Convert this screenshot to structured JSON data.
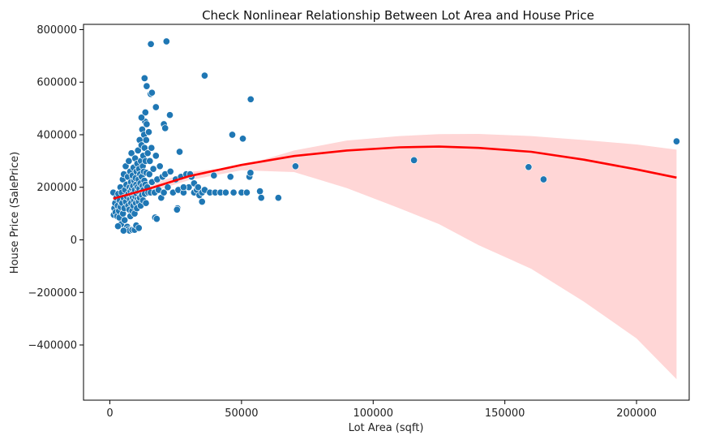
{
  "chart_data": {
    "type": "scatter",
    "title": "Check Nonlinear Relationship Between Lot Area and House Price",
    "xlabel": "Lot Area (sqft)",
    "ylabel": "House Price (SalePrice)",
    "xlim": [
      -10000,
      220000
    ],
    "ylim": [
      -610000,
      820000
    ],
    "xticks": [
      0,
      50000,
      100000,
      150000,
      200000
    ],
    "yticks": [
      -400000,
      -200000,
      0,
      200000,
      400000,
      600000,
      800000
    ],
    "xtick_labels": [
      "0",
      "50000",
      "100000",
      "150000",
      "200000"
    ],
    "ytick_labels": [
      "−400000",
      "−200000",
      "0",
      "200000",
      "400000",
      "600000",
      "800000"
    ],
    "grid": false,
    "colors": {
      "points": "#1f77b4",
      "point_edge": "#ffffff",
      "fit_line": "#ff0000",
      "ci_band": "#ffd6d6"
    },
    "series": [
      {
        "kind": "scatter",
        "points": [
          [
            1300,
            180000
          ],
          [
            1500,
            95000
          ],
          [
            1700,
            120000
          ],
          [
            2000,
            140000
          ],
          [
            2200,
            105000
          ],
          [
            2500,
            160000
          ],
          [
            2800,
            90000
          ],
          [
            3000,
            130000
          ],
          [
            3200,
            175000
          ],
          [
            3500,
            110000
          ],
          [
            3600,
            85000
          ],
          [
            3800,
            150000
          ],
          [
            4000,
            200000
          ],
          [
            4100,
            125000
          ],
          [
            4300,
            60000
          ],
          [
            4500,
            180000
          ],
          [
            4700,
            140000
          ],
          [
            4900,
            230000
          ],
          [
            5000,
            100000
          ],
          [
            5200,
            160000
          ],
          [
            5300,
            250000
          ],
          [
            5500,
            120000
          ],
          [
            5600,
            75000
          ],
          [
            5800,
            190000
          ],
          [
            6000,
            280000
          ],
          [
            6100,
            145000
          ],
          [
            6300,
            210000
          ],
          [
            6500,
            165000
          ],
          [
            6600,
            50000
          ],
          [
            6800,
            240000
          ],
          [
            7000,
            130000
          ],
          [
            7100,
            175000
          ],
          [
            7200,
            300000
          ],
          [
            7400,
            115000
          ],
          [
            7500,
            200000
          ],
          [
            7600,
            155000
          ],
          [
            7700,
            260000
          ],
          [
            7800,
            90000
          ],
          [
            7900,
            185000
          ],
          [
            8000,
            220000
          ],
          [
            8100,
            140000
          ],
          [
            8200,
            330000
          ],
          [
            8300,
            170000
          ],
          [
            8400,
            195000
          ],
          [
            8500,
            110000
          ],
          [
            8600,
            245000
          ],
          [
            8700,
            160000
          ],
          [
            8800,
            205000
          ],
          [
            8900,
            130000
          ],
          [
            9000,
            275000
          ],
          [
            9100,
            180000
          ],
          [
            9200,
            150000
          ],
          [
            9300,
            225000
          ],
          [
            9400,
            100000
          ],
          [
            9500,
            190000
          ],
          [
            9600,
            310000
          ],
          [
            9700,
            165000
          ],
          [
            9800,
            235000
          ],
          [
            9900,
            140000
          ],
          [
            10000,
            210000
          ],
          [
            10100,
            260000
          ],
          [
            10200,
            175000
          ],
          [
            10300,
            120000
          ],
          [
            10400,
            290000
          ],
          [
            10500,
            200000
          ],
          [
            10600,
            155000
          ],
          [
            10700,
            340000
          ],
          [
            10800,
            185000
          ],
          [
            10900,
            230000
          ],
          [
            11000,
            145000
          ],
          [
            11100,
            270000
          ],
          [
            11200,
            195000
          ],
          [
            11300,
            380000
          ],
          [
            11400,
            160000
          ],
          [
            11500,
            250000
          ],
          [
            11600,
            215000
          ],
          [
            11700,
            130000
          ],
          [
            11800,
            300000
          ],
          [
            11900,
            180000
          ],
          [
            12000,
            360000
          ],
          [
            12100,
            240000
          ],
          [
            12200,
            170000
          ],
          [
            12300,
            420000
          ],
          [
            12400,
            205000
          ],
          [
            12500,
            280000
          ],
          [
            12600,
            150000
          ],
          [
            12700,
            320000
          ],
          [
            12800,
            190000
          ],
          [
            12900,
            260000
          ],
          [
            13000,
            400000
          ],
          [
            13100,
            225000
          ],
          [
            13200,
            350000
          ],
          [
            13300,
            175000
          ],
          [
            13400,
            450000
          ],
          [
            13500,
            210000
          ],
          [
            13600,
            300000
          ],
          [
            13700,
            140000
          ],
          [
            13800,
            380000
          ],
          [
            13900,
            255000
          ],
          [
            14000,
            440000
          ],
          [
            14200,
            200000
          ],
          [
            14400,
            330000
          ],
          [
            14600,
            180000
          ],
          [
            14800,
            410000
          ],
          [
            15000,
            250000
          ],
          [
            15200,
            300000
          ],
          [
            15500,
            180000
          ],
          [
            15800,
            350000
          ],
          [
            16000,
            220000
          ],
          [
            16500,
            270000
          ],
          [
            17000,
            180000
          ],
          [
            17500,
            320000
          ],
          [
            18000,
            230000
          ],
          [
            18500,
            190000
          ],
          [
            19000,
            280000
          ],
          [
            19500,
            160000
          ],
          [
            20000,
            240000
          ],
          [
            20500,
            180000
          ],
          [
            21000,
            250000
          ],
          [
            22000,
            200000
          ],
          [
            23000,
            260000
          ],
          [
            24000,
            180000
          ],
          [
            25000,
            230000
          ],
          [
            26000,
            190000
          ],
          [
            27000,
            240000
          ],
          [
            28000,
            180000
          ],
          [
            29000,
            250000
          ],
          [
            30000,
            200000
          ],
          [
            31000,
            240000
          ],
          [
            32000,
            180000
          ],
          [
            33000,
            190000
          ],
          [
            34000,
            170000
          ],
          [
            35000,
            180000
          ],
          [
            36000,
            190000
          ],
          [
            38000,
            180000
          ],
          [
            40000,
            180000
          ],
          [
            42000,
            180000
          ],
          [
            44000,
            180000
          ],
          [
            47000,
            180000
          ],
          [
            50000,
            180000
          ],
          [
            52000,
            180000
          ],
          [
            13200,
            615000
          ],
          [
            14000,
            585000
          ],
          [
            15500,
            555000
          ],
          [
            16000,
            560000
          ],
          [
            17500,
            505000
          ],
          [
            13500,
            485000
          ],
          [
            20500,
            440000
          ],
          [
            21000,
            425000
          ],
          [
            22800,
            475000
          ],
          [
            12000,
            465000
          ],
          [
            26500,
            335000
          ],
          [
            36000,
            625000
          ],
          [
            15600,
            745000
          ],
          [
            21500,
            755000
          ],
          [
            46500,
            400000
          ],
          [
            50500,
            385000
          ],
          [
            53500,
            535000
          ],
          [
            39500,
            245000
          ],
          [
            45800,
            240000
          ],
          [
            53000,
            240000
          ],
          [
            53400,
            255000
          ],
          [
            57000,
            185000
          ],
          [
            57500,
            160000
          ],
          [
            64000,
            160000
          ],
          [
            70500,
            280000
          ],
          [
            115500,
            303000
          ],
          [
            159000,
            277000
          ],
          [
            164700,
            230000
          ],
          [
            215200,
            375000
          ],
          [
            6900,
            40000
          ],
          [
            7500,
            35000
          ],
          [
            8500,
            38000
          ],
          [
            9400,
            38000
          ],
          [
            10000,
            55000
          ],
          [
            11000,
            45000
          ],
          [
            3100,
            52000
          ],
          [
            5200,
            35000
          ],
          [
            17200,
            85000
          ],
          [
            17800,
            80000
          ],
          [
            25700,
            120000
          ],
          [
            25500,
            115000
          ],
          [
            32000,
            215000
          ],
          [
            28000,
            200000
          ],
          [
            30500,
            250000
          ],
          [
            35000,
            145000
          ],
          [
            33500,
            200000
          ]
        ]
      },
      {
        "kind": "fit_line",
        "name": "",
        "points": [
          [
            1300,
            157000
          ],
          [
            15000,
            195000
          ],
          [
            30000,
            242000
          ],
          [
            50000,
            285000
          ],
          [
            70000,
            319000
          ],
          [
            90000,
            340000
          ],
          [
            110000,
            352000
          ],
          [
            125000,
            355000
          ],
          [
            140000,
            350000
          ],
          [
            160000,
            335000
          ],
          [
            180000,
            305000
          ],
          [
            200000,
            268000
          ],
          [
            215200,
            237000
          ]
        ]
      },
      {
        "kind": "ci_band",
        "upper": [
          [
            1300,
            172000
          ],
          [
            15000,
            210000
          ],
          [
            30000,
            258000
          ],
          [
            50000,
            280000
          ],
          [
            70000,
            340000
          ],
          [
            90000,
            378000
          ],
          [
            110000,
            395000
          ],
          [
            125000,
            402000
          ],
          [
            140000,
            403000
          ],
          [
            160000,
            395000
          ],
          [
            180000,
            380000
          ],
          [
            200000,
            363000
          ],
          [
            215200,
            343000
          ]
        ],
        "lower": [
          [
            1300,
            142000
          ],
          [
            15000,
            181000
          ],
          [
            30000,
            227000
          ],
          [
            50000,
            265000
          ],
          [
            70000,
            258000
          ],
          [
            90000,
            197000
          ],
          [
            110000,
            120000
          ],
          [
            125000,
            60000
          ],
          [
            140000,
            -20000
          ],
          [
            160000,
            -110000
          ],
          [
            180000,
            -235000
          ],
          [
            200000,
            -375000
          ],
          [
            215200,
            -530000
          ]
        ]
      }
    ]
  }
}
